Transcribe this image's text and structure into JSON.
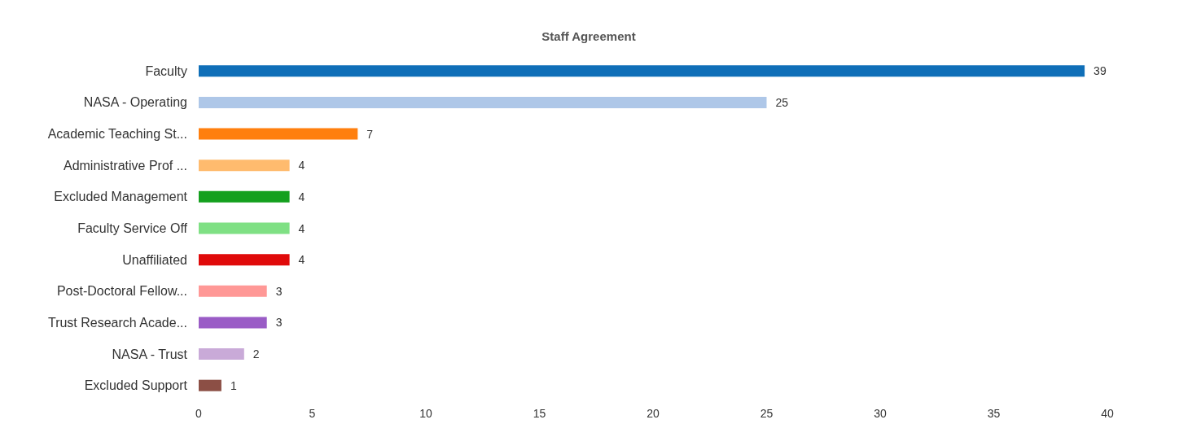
{
  "chart_data": {
    "type": "bar",
    "orientation": "horizontal",
    "title": "Staff Agreement",
    "categories": [
      "Faculty",
      "NASA - Operating",
      "Academic Teaching St...",
      "Administrative Prof ...",
      "Excluded Management",
      "Faculty Service Off",
      "Unaffiliated",
      "Post-Doctoral Fellow...",
      "Trust Research Acade...",
      "NASA - Trust",
      "Excluded Support"
    ],
    "values": [
      39,
      25,
      7,
      4,
      4,
      4,
      4,
      3,
      3,
      2,
      1
    ],
    "colors": [
      "#0f6fb8",
      "#aec7e8",
      "#ff7f0e",
      "#ffbb6e",
      "#14a01e",
      "#7fe084",
      "#e00a0a",
      "#ff9896",
      "#9a5cc6",
      "#c9aad8",
      "#8c4f45"
    ],
    "xlim": [
      0,
      40
    ],
    "xticks": [
      0,
      5,
      10,
      15,
      20,
      25,
      30,
      35,
      40
    ],
    "grid": false,
    "data_labels": true
  }
}
